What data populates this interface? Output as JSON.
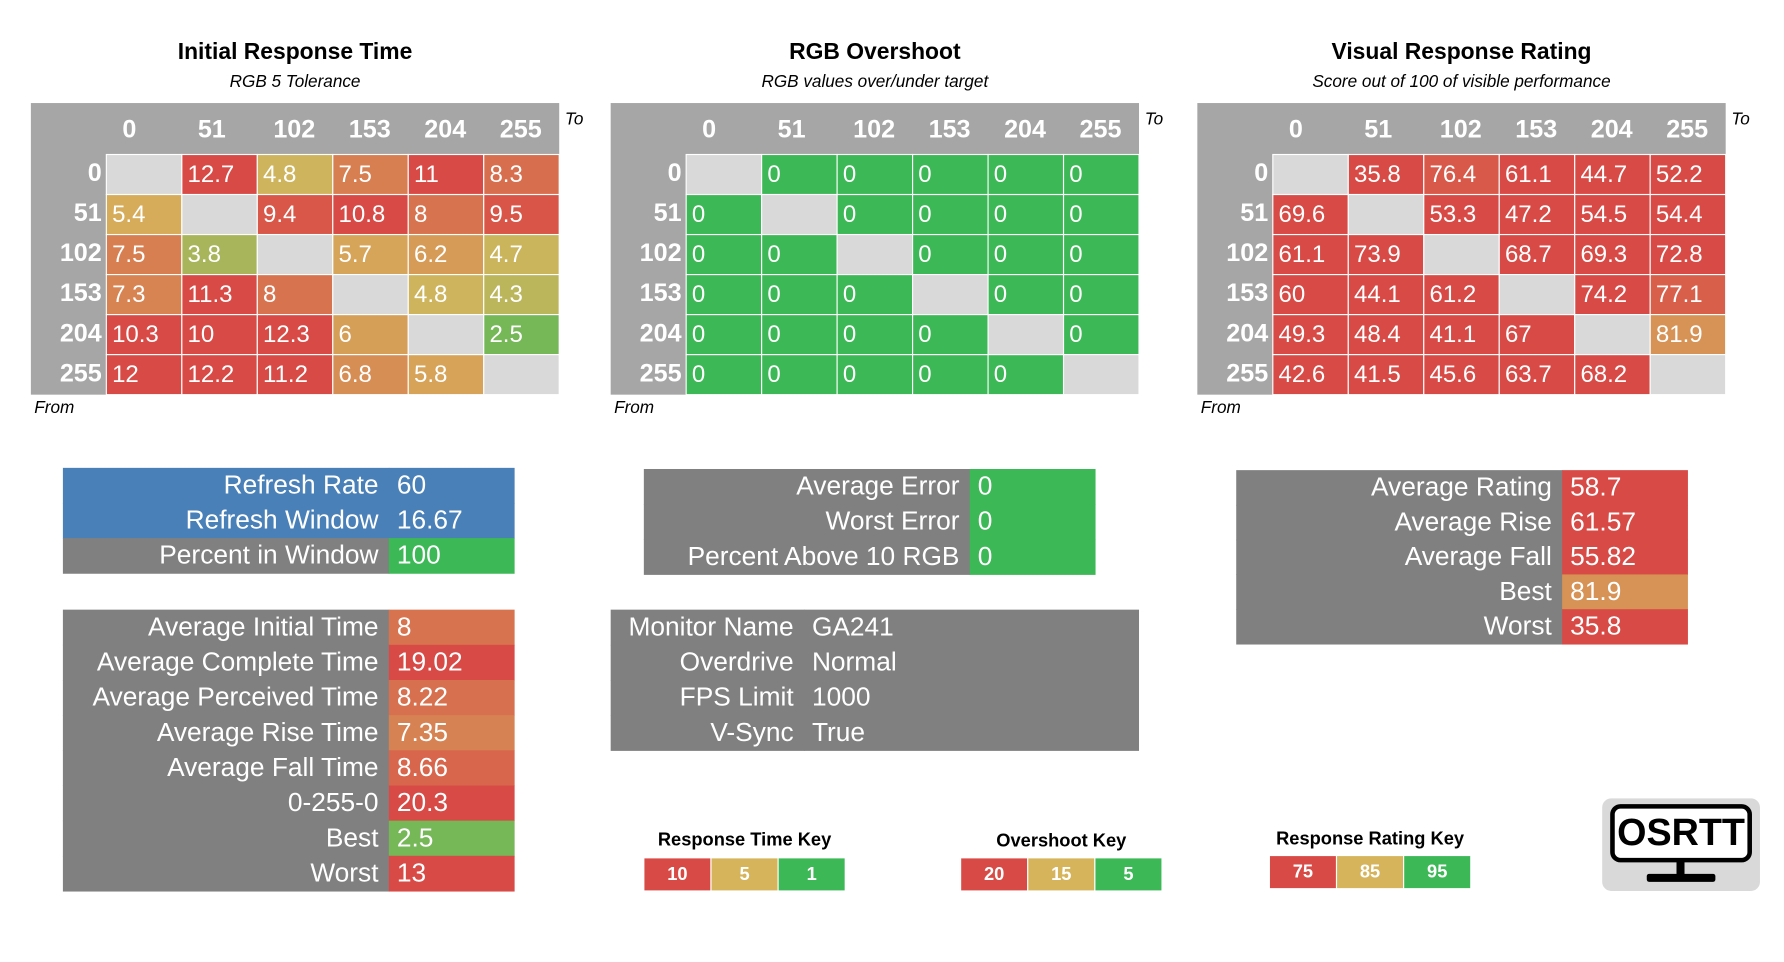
{
  "matrices": [
    {
      "title": "Initial Response Time",
      "subtitle": "RGB 5 Tolerance",
      "to_label": "To",
      "from_label": "From",
      "columns": [
        0,
        51,
        102,
        153,
        204,
        255
      ],
      "rows": [
        0,
        51,
        102,
        153,
        204,
        255
      ],
      "values": [
        [
          null,
          12.7,
          4.8,
          7.5,
          11,
          8.3
        ],
        [
          5.4,
          null,
          9.4,
          10.8,
          8,
          9.5
        ],
        [
          7.5,
          3.8,
          null,
          5.7,
          6.2,
          4.7
        ],
        [
          7.3,
          11.3,
          8,
          null,
          4.8,
          4.3
        ],
        [
          10.3,
          10,
          12.3,
          6,
          null,
          2.5
        ],
        [
          12,
          12.2,
          11.2,
          6.8,
          5.8,
          null
        ]
      ],
      "color_key": 0,
      "empty_color": "#d9d9d9"
    },
    {
      "title": "RGB Overshoot",
      "subtitle": "RGB values over/under target",
      "to_label": "To",
      "from_label": "From",
      "columns": [
        0,
        51,
        102,
        153,
        204,
        255
      ],
      "rows": [
        0,
        51,
        102,
        153,
        204,
        255
      ],
      "values": [
        [
          null,
          0,
          0,
          0,
          0,
          0
        ],
        [
          0,
          null,
          0,
          0,
          0,
          0
        ],
        [
          0,
          0,
          null,
          0,
          0,
          0
        ],
        [
          0,
          0,
          0,
          null,
          0,
          0
        ],
        [
          0,
          0,
          0,
          0,
          null,
          0
        ],
        [
          0,
          0,
          0,
          0,
          0,
          null
        ]
      ],
      "color_key": 1,
      "empty_color": "#d9d9d9"
    },
    {
      "title": "Visual Response Rating",
      "subtitle": "Score out of 100 of visible performance",
      "to_label": "To",
      "from_label": "From",
      "columns": [
        0,
        51,
        102,
        153,
        204,
        255
      ],
      "rows": [
        0,
        51,
        102,
        153,
        204,
        255
      ],
      "values": [
        [
          null,
          35.8,
          76.4,
          61.1,
          44.7,
          52.2
        ],
        [
          69.6,
          null,
          53.3,
          47.2,
          54.5,
          54.4
        ],
        [
          61.1,
          73.9,
          null,
          68.7,
          69.3,
          72.8
        ],
        [
          60,
          44.1,
          61.2,
          null,
          74.2,
          77.1
        ],
        [
          49.3,
          48.4,
          41.1,
          67,
          null,
          81.9
        ],
        [
          42.6,
          41.5,
          45.6,
          63.7,
          68.2,
          null
        ]
      ],
      "color_key": 2,
      "empty_color": "#d9d9d9"
    }
  ],
  "panels": [
    {
      "label_color": "#808080",
      "rows": [
        {
          "label": "Refresh Rate",
          "value": 60,
          "color": "#4a80b8",
          "label_color": "#4a80b8"
        },
        {
          "label": "Refresh Window",
          "value": 16.67,
          "color": "#4a80b8",
          "label_color": "#4a80b8"
        },
        {
          "label": "Percent in Window",
          "value": 100,
          "color": "#3cb856"
        }
      ]
    },
    {
      "label_color": "#808080",
      "color_key": 0,
      "rows": [
        {
          "label": "Average Initial Time",
          "value": 8
        },
        {
          "label": "Average Complete Time",
          "value": 19.02
        },
        {
          "label": "Average Perceived Time",
          "value": 8.22
        },
        {
          "label": "Average Rise Time",
          "value": 7.35
        },
        {
          "label": "Average Fall Time",
          "value": 8.66
        },
        {
          "label": "0-255-0",
          "value": 20.3
        },
        {
          "label": "Best",
          "value": 2.5
        },
        {
          "label": "Worst",
          "value": 13
        }
      ]
    },
    {
      "label_color": "#808080",
      "color_key": 1,
      "rows": [
        {
          "label": "Average Error",
          "value": 0
        },
        {
          "label": "Worst Error",
          "value": 0
        },
        {
          "label": "Percent Above 10 RGB",
          "value": 0
        }
      ]
    },
    {
      "label_color": "#808080",
      "color": "#808080",
      "rows": [
        {
          "label": "Monitor Name",
          "value": "GA241"
        },
        {
          "label": "Overdrive",
          "value": "Normal"
        },
        {
          "label": "FPS Limit",
          "value": 1000
        },
        {
          "label": "V-Sync",
          "value": "True"
        }
      ]
    },
    {
      "label_color": "#808080",
      "color_key": 2,
      "rows": [
        {
          "label": "Average Rating",
          "value": 58.7
        },
        {
          "label": "Average Rise",
          "value": 61.57
        },
        {
          "label": "Average Fall",
          "value": 55.82
        },
        {
          "label": "Best",
          "value": 81.9
        },
        {
          "label": "Worst",
          "value": 35.8
        }
      ]
    }
  ],
  "keys": [
    {
      "title": "Response Time Key",
      "values": [
        10,
        5,
        1
      ],
      "colors": [
        "#d84a46",
        "#d6b45c",
        "#3cb856"
      ]
    },
    {
      "title": "Overshoot Key",
      "values": [
        20,
        15,
        5
      ],
      "colors": [
        "#d84a46",
        "#d6b45c",
        "#3cb856"
      ]
    },
    {
      "title": "Response Rating Key",
      "values": [
        75,
        85,
        95
      ],
      "colors": [
        "#d84a46",
        "#d6b45c",
        "#3cb856"
      ]
    }
  ],
  "logo": "OSRTT"
}
